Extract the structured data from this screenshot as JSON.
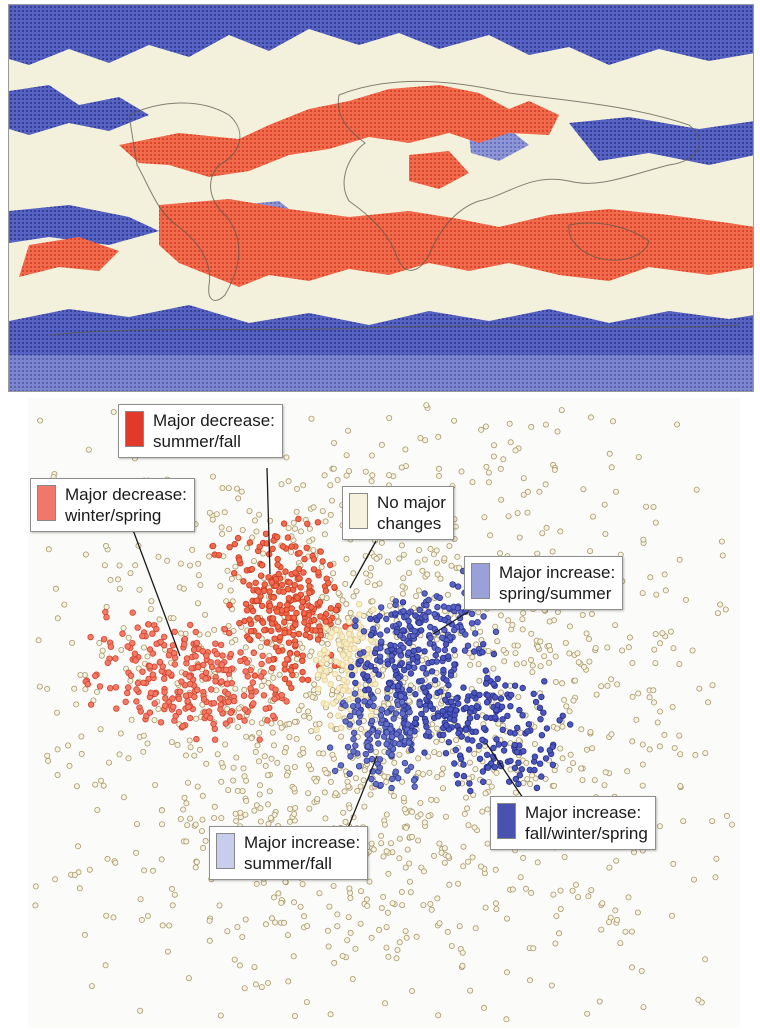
{
  "colors": {
    "increase": "#4b56b8",
    "decrease": "#ee5b3c",
    "no_change": "#f1ecd3",
    "neutral_point": "#b3a57a"
  },
  "legend": {
    "decrease_summer_fall": {
      "line1": "Major decrease:",
      "line2": "summer/fall",
      "swatch": "#e23a2a"
    },
    "decrease_winter_spring": {
      "line1": "Major decrease:",
      "line2": "winter/spring",
      "swatch": "#f0776a"
    },
    "no_change": {
      "line1": "No major",
      "line2": "changes",
      "swatch": "#f6f1dc"
    },
    "increase_spring_summer": {
      "line1": "Major increase:",
      "line2": "spring/summer",
      "swatch": "#9aa1d9"
    },
    "increase_fall_winter_spring": {
      "line1": "Major increase:",
      "line2": "fall/winter/spring",
      "swatch": "#4a52b0"
    },
    "increase_summer_fall": {
      "line1": "Major increase:",
      "line2": "summer/fall",
      "swatch": "#c8cdee"
    }
  }
}
